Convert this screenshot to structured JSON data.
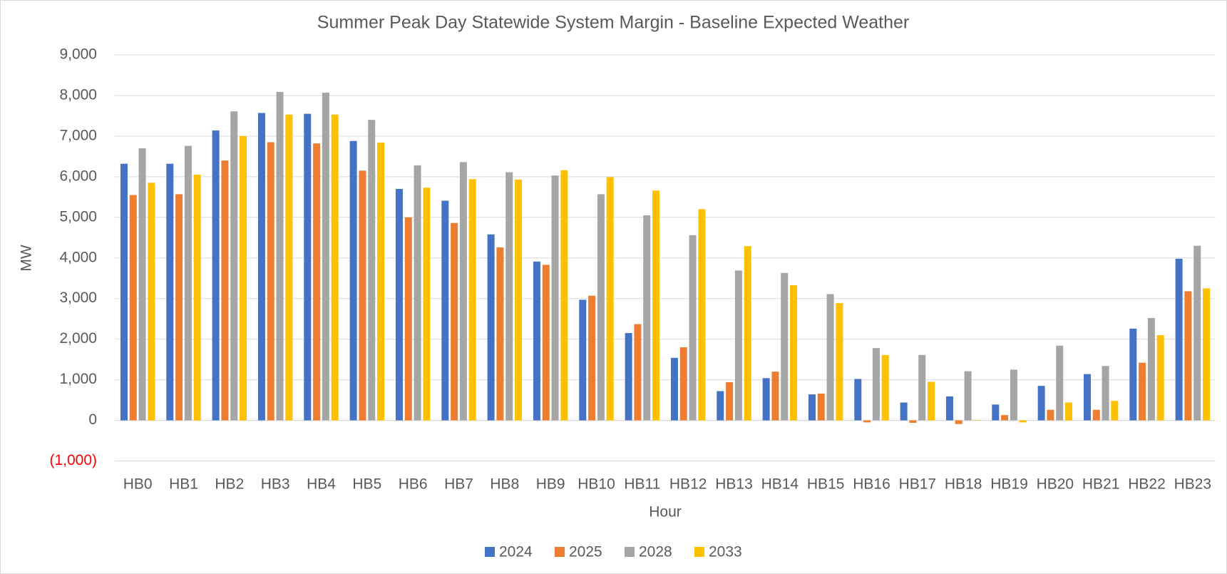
{
  "chart_data": {
    "type": "bar",
    "title": "Summer Peak Day Statewide System Margin - Baseline Expected Weather",
    "x_label": "Hour",
    "y_label": "MW",
    "categories": [
      "HB0",
      "HB1",
      "HB2",
      "HB3",
      "HB4",
      "HB5",
      "HB6",
      "HB7",
      "HB8",
      "HB9",
      "HB10",
      "HB11",
      "HB12",
      "HB13",
      "HB14",
      "HB15",
      "HB16",
      "HB17",
      "HB18",
      "HB19",
      "HB20",
      "HB21",
      "HB22",
      "HB23"
    ],
    "series": [
      {
        "name": "2024",
        "color": "#4472c4",
        "values": [
          6320,
          6320,
          7140,
          7570,
          7550,
          6880,
          5700,
          5410,
          4580,
          3910,
          2970,
          2150,
          1540,
          720,
          1040,
          640,
          1020,
          440,
          590,
          390,
          850,
          1140,
          2260,
          3980
        ]
      },
      {
        "name": "2025",
        "color": "#ed7d31",
        "values": [
          5550,
          5570,
          6400,
          6850,
          6820,
          6150,
          5000,
          4860,
          4260,
          3830,
          3070,
          2370,
          1800,
          940,
          1200,
          660,
          -50,
          -60,
          -90,
          130,
          260,
          260,
          1420,
          3180
        ]
      },
      {
        "name": "2028",
        "color": "#a5a5a5",
        "values": [
          6700,
          6760,
          7610,
          8090,
          8070,
          7400,
          6280,
          6360,
          6110,
          6030,
          5570,
          5050,
          4560,
          3690,
          3630,
          3110,
          1780,
          1610,
          1210,
          1250,
          1840,
          1340,
          2520,
          4300
        ]
      },
      {
        "name": "2033",
        "color": "#ffc000",
        "values": [
          5850,
          6050,
          7000,
          7530,
          7530,
          6840,
          5730,
          5940,
          5930,
          6160,
          5990,
          5660,
          5200,
          4290,
          3330,
          2890,
          1610,
          950,
          10,
          -50,
          440,
          480,
          2100,
          3250
        ]
      }
    ],
    "ylim": [
      -1000,
      9000
    ],
    "yticks": [
      {
        "value": -1000,
        "label": "(1,000)"
      },
      0,
      {
        "value": 1000,
        "label": "1,000"
      },
      {
        "value": 2000,
        "label": "2,000"
      },
      {
        "value": 3000,
        "label": "3,000"
      },
      {
        "value": 4000,
        "label": "4,000"
      },
      {
        "value": 5000,
        "label": "5,000"
      },
      {
        "value": 6000,
        "label": "6,000"
      },
      {
        "value": 7000,
        "label": "7,000"
      },
      {
        "value": 8000,
        "label": "8,000"
      },
      {
        "value": 9000,
        "label": "9,000"
      }
    ],
    "negative_tick_color": "#ff0000",
    "grid": true,
    "legend": "bottom"
  }
}
